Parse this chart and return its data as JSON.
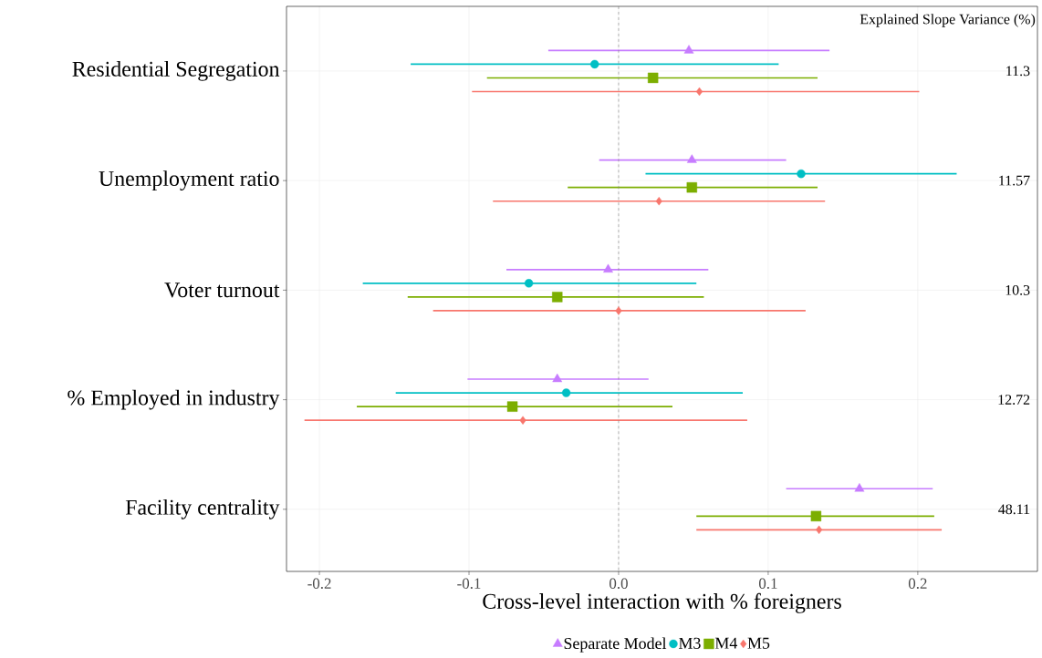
{
  "chart_data": {
    "type": "scatter",
    "orientation": "horizontal",
    "categories": [
      "Residential Segregation",
      "Unemployment ratio",
      "Voter turnout",
      "% Employed in industry",
      "Facility centrality"
    ],
    "series": [
      {
        "name": "Separate Model",
        "color": "#c77cff",
        "marker": "triangle",
        "values": [
          0.047,
          0.049,
          -0.007,
          -0.041,
          0.161
        ],
        "errors": [
          [
            -0.047,
            0.141
          ],
          [
            -0.013,
            0.112
          ],
          [
            -0.075,
            0.06
          ],
          [
            -0.101,
            0.02
          ],
          [
            0.112,
            0.21
          ]
        ]
      },
      {
        "name": "M3",
        "color": "#00bfc4",
        "marker": "circle",
        "values": [
          -0.016,
          0.122,
          -0.06,
          -0.035,
          null
        ],
        "errors": [
          [
            -0.139,
            0.107
          ],
          [
            0.018,
            0.226
          ],
          [
            -0.171,
            0.052
          ],
          [
            -0.149,
            0.083
          ],
          null
        ]
      },
      {
        "name": "M4",
        "color": "#7cae00",
        "marker": "square",
        "values": [
          0.023,
          0.049,
          -0.041,
          -0.071,
          0.132
        ],
        "errors": [
          [
            -0.088,
            0.133
          ],
          [
            -0.034,
            0.133
          ],
          [
            -0.141,
            0.057
          ],
          [
            -0.175,
            0.036
          ],
          [
            0.052,
            0.211
          ]
        ]
      },
      {
        "name": "M5",
        "color": "#f8766d",
        "marker": "diamond",
        "values": [
          0.054,
          0.027,
          0.0,
          -0.064,
          0.134
        ],
        "errors": [
          [
            -0.098,
            0.201
          ],
          [
            -0.084,
            0.138
          ],
          [
            -0.124,
            0.125
          ],
          [
            -0.21,
            0.086
          ],
          [
            0.052,
            0.216
          ]
        ]
      }
    ],
    "xlim": [
      -0.222,
      0.28
    ],
    "xticks": [
      {
        "value": -0.2,
        "label": "-0.2"
      },
      {
        "value": -0.1,
        "label": "-0.1"
      },
      {
        "value": 0,
        "label": "0.0"
      },
      {
        "value": 0.1,
        "label": "0.1"
      },
      {
        "value": 0.2,
        "label": "0.2"
      }
    ],
    "xlabel": "Cross-level interaction with % foreigners",
    "ref_lines": [
      {
        "axis": "x",
        "value": 0,
        "color": "#7f7f7f",
        "line_style": "dashed"
      }
    ],
    "annotations": [
      "Explained Slope Variance (%)",
      "11.3",
      "11.57",
      "10.3",
      "12.72",
      "48.11"
    ],
    "grid": true,
    "legend": "bottom"
  }
}
